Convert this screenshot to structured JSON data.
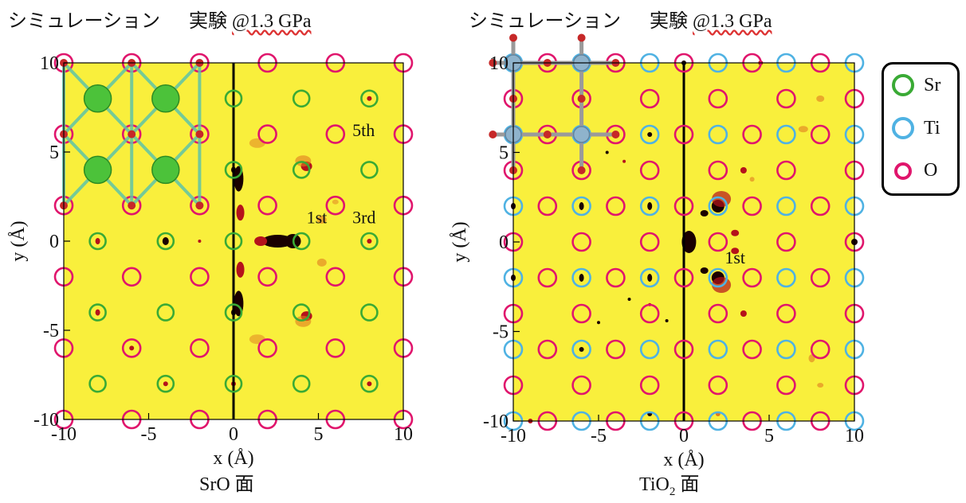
{
  "colors": {
    "plot_bg": "#f9ef3c",
    "Sr": "#3aaa35",
    "Ti": "#4fb2e3",
    "O": "#e0156c",
    "dark": "#1a0000",
    "red": "#b5121b",
    "orange": "#e07a20"
  },
  "header_left": {
    "sim": "シミュレーション",
    "exp": "実験",
    "exp_value": "@1.3 GPa"
  },
  "header_right": {
    "sim": "シミュレーション",
    "exp": "実験",
    "exp_value": "@1.3 GPa"
  },
  "legend": [
    {
      "label": "Sr",
      "color": "#3aaa35"
    },
    {
      "label": "Ti",
      "color": "#4fb2e3"
    },
    {
      "label": "O",
      "color": "#e0156c"
    }
  ],
  "chart_data": [
    {
      "type": "scatter",
      "caption": "SrO 面",
      "xlabel": "x (Å)",
      "ylabel": "y (Å)",
      "xlim": [
        -10,
        10
      ],
      "ylim": [
        -10,
        10
      ],
      "xticks": [
        -10,
        -5,
        0,
        5,
        10
      ],
      "yticks": [
        -10,
        -5,
        0,
        5,
        10
      ],
      "sr_sites": [
        [
          -8,
          -8
        ],
        [
          -8,
          -4
        ],
        [
          -8,
          0
        ],
        [
          -4,
          -8
        ],
        [
          -4,
          -4
        ],
        [
          -4,
          0
        ],
        [
          0,
          -8
        ],
        [
          0,
          -4
        ],
        [
          0,
          0
        ],
        [
          0,
          4
        ],
        [
          0,
          8
        ],
        [
          4,
          -8
        ],
        [
          4,
          -4
        ],
        [
          4,
          0
        ],
        [
          4,
          4
        ],
        [
          4,
          8
        ],
        [
          8,
          -8
        ],
        [
          8,
          -4
        ],
        [
          8,
          0
        ],
        [
          8,
          4
        ],
        [
          8,
          8
        ]
      ],
      "o_sites": [
        [
          -10,
          -10
        ],
        [
          -10,
          -6
        ],
        [
          -10,
          -2
        ],
        [
          -10,
          2
        ],
        [
          -10,
          6
        ],
        [
          -10,
          10
        ],
        [
          -6,
          -10
        ],
        [
          -6,
          -6
        ],
        [
          -6,
          -2
        ],
        [
          -6,
          2
        ],
        [
          -6,
          6
        ],
        [
          -6,
          10
        ],
        [
          -2,
          -10
        ],
        [
          -2,
          -6
        ],
        [
          -2,
          -2
        ],
        [
          -2,
          2
        ],
        [
          -2,
          6
        ],
        [
          -2,
          10
        ],
        [
          2,
          -10
        ],
        [
          2,
          -6
        ],
        [
          2,
          -2
        ],
        [
          2,
          2
        ],
        [
          2,
          6
        ],
        [
          2,
          10
        ],
        [
          6,
          -10
        ],
        [
          6,
          -6
        ],
        [
          6,
          -2
        ],
        [
          6,
          2
        ],
        [
          6,
          6
        ],
        [
          6,
          10
        ],
        [
          10,
          -10
        ],
        [
          10,
          -6
        ],
        [
          10,
          -2
        ],
        [
          10,
          2
        ],
        [
          10,
          6
        ],
        [
          10,
          10
        ]
      ],
      "annotations": [
        {
          "text": "1st",
          "x": 4.3,
          "y": 1.0
        },
        {
          "text": "3rd",
          "x": 7.0,
          "y": 1.0
        },
        {
          "text": "5th",
          "x": 7.0,
          "y": 5.9
        }
      ],
      "model_atoms": {
        "Sr": [
          [
            -8,
            8
          ],
          [
            -4,
            8
          ],
          [
            -8,
            4
          ],
          [
            -4,
            4
          ]
        ]
      }
    },
    {
      "type": "scatter",
      "caption": "TiO2 面",
      "caption_main": "TiO",
      "caption_sub": "2",
      "caption_tail": " 面",
      "xlabel": "x (Å)",
      "ylabel": "y (Å)",
      "xlim": [
        -10,
        10
      ],
      "ylim": [
        -10,
        10
      ],
      "xticks": [
        -10,
        -5,
        0,
        5,
        10
      ],
      "yticks": [
        -10,
        -5,
        0,
        5,
        10
      ],
      "ti_sites": [
        [
          -10,
          -10
        ],
        [
          -10,
          -6
        ],
        [
          -10,
          -2
        ],
        [
          -10,
          2
        ],
        [
          -10,
          6
        ],
        [
          -10,
          10
        ],
        [
          -6,
          -10
        ],
        [
          -6,
          -6
        ],
        [
          -6,
          -2
        ],
        [
          -6,
          2
        ],
        [
          -6,
          6
        ],
        [
          -6,
          10
        ],
        [
          -2,
          -10
        ],
        [
          -2,
          -6
        ],
        [
          -2,
          -2
        ],
        [
          -2,
          2
        ],
        [
          -2,
          6
        ],
        [
          -2,
          10
        ],
        [
          2,
          -10
        ],
        [
          2,
          -6
        ],
        [
          2,
          -2
        ],
        [
          2,
          2
        ],
        [
          2,
          6
        ],
        [
          2,
          10
        ],
        [
          6,
          -10
        ],
        [
          6,
          -6
        ],
        [
          6,
          -2
        ],
        [
          6,
          2
        ],
        [
          6,
          6
        ],
        [
          6,
          10
        ],
        [
          10,
          -10
        ],
        [
          10,
          -6
        ],
        [
          10,
          -2
        ],
        [
          10,
          2
        ],
        [
          10,
          6
        ],
        [
          10,
          10
        ]
      ],
      "o_sites": [
        [
          -8,
          -10
        ],
        [
          -8,
          -6
        ],
        [
          -8,
          -2
        ],
        [
          -8,
          2
        ],
        [
          -8,
          6
        ],
        [
          -8,
          10
        ],
        [
          -4,
          -10
        ],
        [
          -4,
          -6
        ],
        [
          -4,
          -2
        ],
        [
          -4,
          2
        ],
        [
          -4,
          6
        ],
        [
          -4,
          10
        ],
        [
          0,
          -10
        ],
        [
          0,
          -6
        ],
        [
          0,
          -2
        ],
        [
          0,
          2
        ],
        [
          0,
          6
        ],
        [
          0,
          10
        ],
        [
          4,
          -10
        ],
        [
          4,
          -6
        ],
        [
          4,
          -2
        ],
        [
          4,
          2
        ],
        [
          4,
          6
        ],
        [
          4,
          10
        ],
        [
          8,
          -10
        ],
        [
          8,
          -6
        ],
        [
          8,
          -2
        ],
        [
          8,
          2
        ],
        [
          8,
          6
        ],
        [
          8,
          10
        ],
        [
          -10,
          -8
        ],
        [
          -10,
          -4
        ],
        [
          -10,
          0
        ],
        [
          -10,
          4
        ],
        [
          -10,
          8
        ],
        [
          -6,
          -8
        ],
        [
          -6,
          -4
        ],
        [
          -6,
          0
        ],
        [
          -6,
          4
        ],
        [
          -6,
          8
        ],
        [
          -2,
          -8
        ],
        [
          -2,
          -4
        ],
        [
          -2,
          0
        ],
        [
          -2,
          4
        ],
        [
          -2,
          8
        ],
        [
          2,
          -8
        ],
        [
          2,
          -4
        ],
        [
          2,
          0
        ],
        [
          2,
          4
        ],
        [
          2,
          8
        ],
        [
          6,
          -8
        ],
        [
          6,
          -4
        ],
        [
          6,
          0
        ],
        [
          6,
          4
        ],
        [
          6,
          8
        ],
        [
          10,
          -8
        ],
        [
          10,
          -4
        ],
        [
          10,
          0
        ],
        [
          10,
          4
        ],
        [
          10,
          8
        ]
      ],
      "annotations": [
        {
          "text": "1st",
          "x": 2.4,
          "y": -1.2
        }
      ],
      "model_atoms": {
        "Ti": [
          [
            -10,
            10
          ],
          [
            -6,
            10
          ],
          [
            -10,
            6
          ],
          [
            -6,
            6
          ]
        ]
      }
    }
  ]
}
